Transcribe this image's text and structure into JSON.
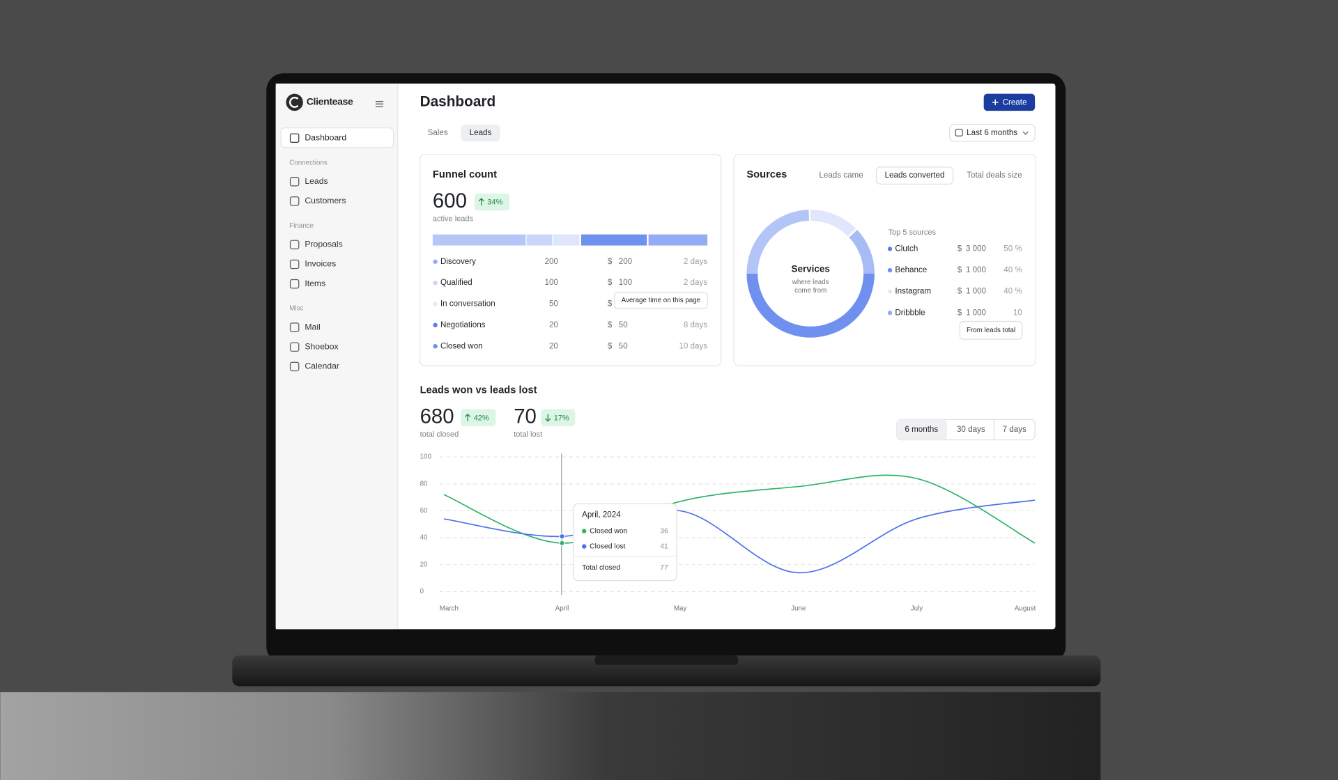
{
  "sidebar": {
    "brand": "Clientease",
    "active": "Dashboard",
    "groups": [
      {
        "title": "Connections",
        "items": [
          "Leads",
          "Customers"
        ]
      },
      {
        "title": "Finance",
        "items": [
          "Proposals",
          "Invoices",
          "Items"
        ]
      },
      {
        "title": "Misc",
        "items": [
          "Mail",
          "Shoebox",
          "Calendar"
        ]
      }
    ]
  },
  "header": {
    "title": "Dashboard",
    "create": "Create",
    "tabs": [
      "Sales",
      "Leads"
    ],
    "period": "Last 6 months"
  },
  "funnel": {
    "title": "Funnel count",
    "total": "600",
    "change": "34%",
    "caption": "active leads",
    "rows": [
      {
        "name": "Discovery",
        "count": "200",
        "currency": "$",
        "amount": "200",
        "time": "2 days"
      },
      {
        "name": "Qualified",
        "count": "100",
        "currency": "$",
        "amount": "100",
        "time": "2 days"
      },
      {
        "name": "In conversation",
        "count": "50",
        "currency": "$"
      },
      {
        "name": "Negotiations",
        "count": "20",
        "currency": "$",
        "amount": "50",
        "time": "8 days"
      },
      {
        "name": "Closed won",
        "count": "20",
        "currency": "$",
        "amount": "50",
        "time": "10 days"
      }
    ],
    "tooltip": "Average time on this page"
  },
  "sources": {
    "title": "Sources",
    "tabs": [
      "Leads came",
      "Leads converted",
      "Total deals size"
    ],
    "donut_title": "Services",
    "donut_caption": [
      "where leads",
      "come from"
    ],
    "list_title": "Top 5 sources",
    "rows": [
      {
        "name": "Clutch",
        "currency": "$",
        "amount": "3 000",
        "share": "50 %"
      },
      {
        "name": "Behance",
        "currency": "$",
        "amount": "1 000",
        "share": "40 %"
      },
      {
        "name": "Instagram",
        "currency": "$",
        "amount": "1 000",
        "share": "40 %"
      },
      {
        "name": "Dribbble",
        "currency": "$",
        "amount": "1 000",
        "share": "10"
      }
    ],
    "tooltip": "From leads total"
  },
  "leads": {
    "title": "Leads won vs leads lost",
    "stats": [
      {
        "value": "680",
        "change": "42%",
        "caption": "total closed"
      },
      {
        "value": "70",
        "change": "17%",
        "caption": "total lost"
      }
    ],
    "ranges": [
      "6 months",
      "30 days",
      "7 days"
    ],
    "tooltip": {
      "title": "April, 2024",
      "total_label": "Total closed",
      "total": 77
    }
  },
  "chart_data": {
    "type": "line",
    "categories": [
      "March",
      "April",
      "May",
      "June",
      "July",
      "August"
    ],
    "series": [
      {
        "name": "Closed won",
        "color": "#2fb36b",
        "values": [
          72,
          36,
          67,
          78,
          84,
          36
        ]
      },
      {
        "name": "Closed lost",
        "color": "#4a72e8",
        "values": [
          54,
          41,
          60,
          14,
          54,
          68
        ]
      }
    ],
    "ylim": [
      0,
      100
    ],
    "yticks": [
      0,
      20,
      40,
      60,
      80,
      100
    ],
    "grid": true
  }
}
